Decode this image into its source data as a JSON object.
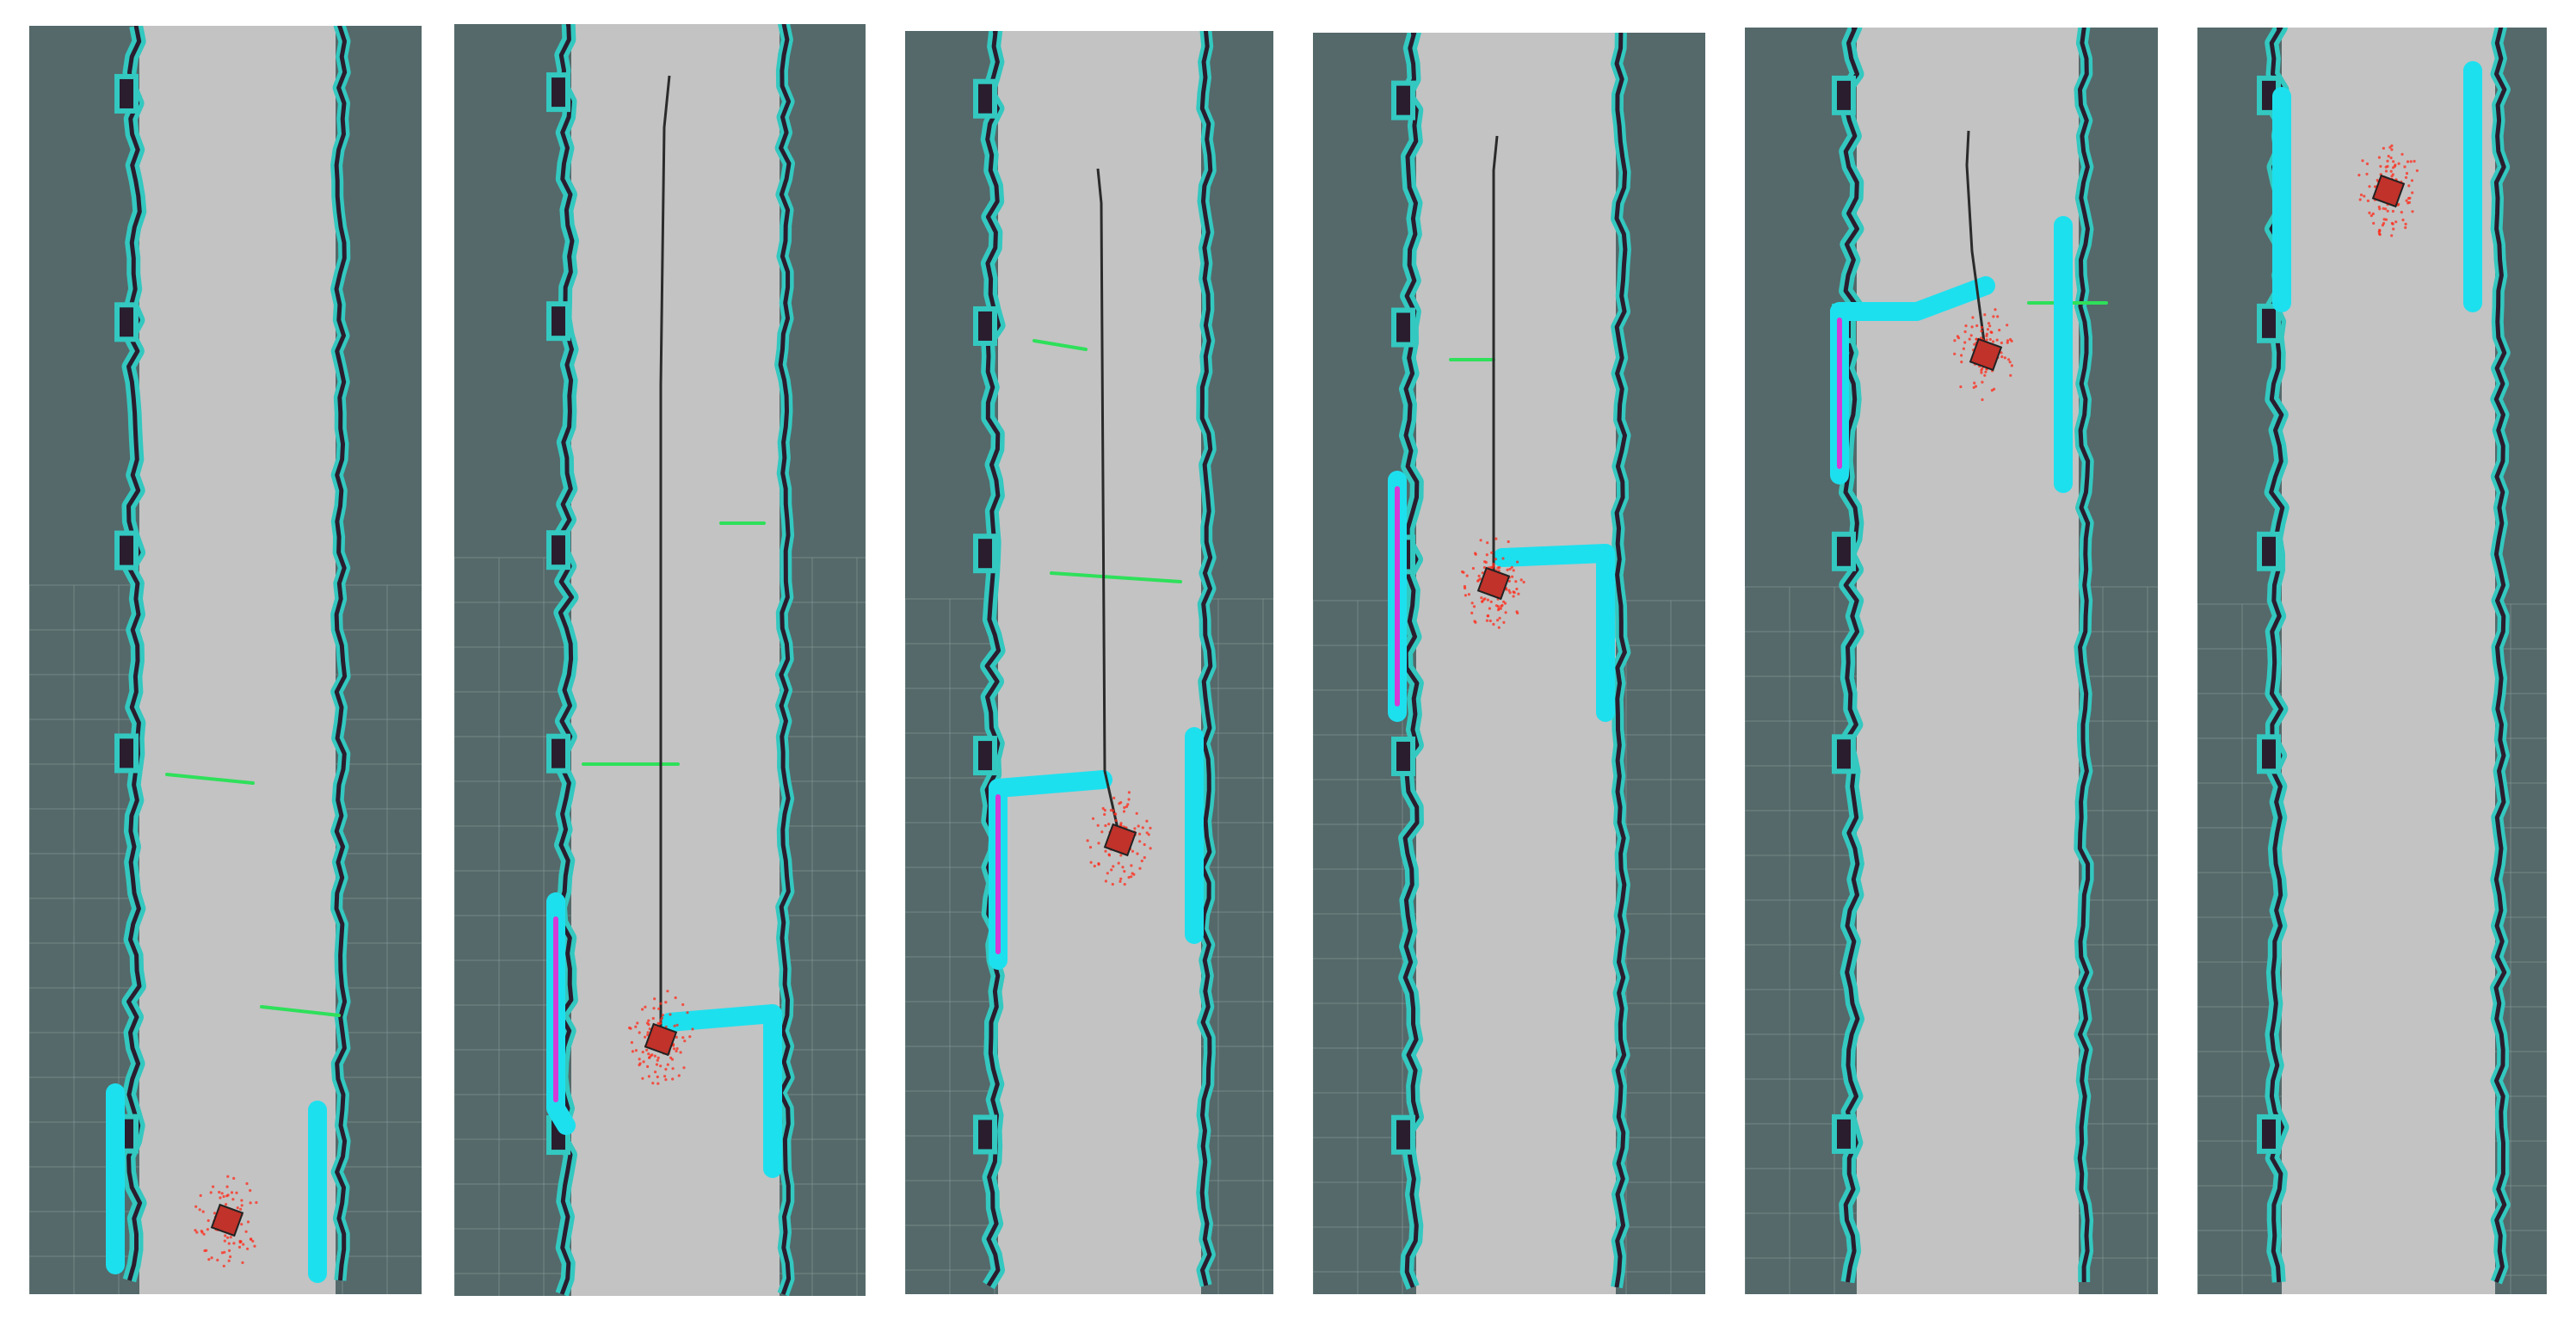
{
  "figure": {
    "panels": [
      {
        "id": "panel-1",
        "robot_visible": true,
        "path_visible": false,
        "obstacle": "bottom-gap"
      },
      {
        "id": "panel-2",
        "robot_visible": true,
        "path_visible": true,
        "obstacle": "lower-corridor"
      },
      {
        "id": "panel-3",
        "robot_visible": true,
        "path_visible": true,
        "obstacle": "mid-corridor"
      },
      {
        "id": "panel-4",
        "robot_visible": true,
        "path_visible": true,
        "obstacle": "upper-corridor"
      },
      {
        "id": "panel-5",
        "robot_visible": true,
        "path_visible": true,
        "obstacle": "top-corridor"
      },
      {
        "id": "panel-6",
        "robot_visible": true,
        "path_visible": false,
        "obstacle": "top-edge"
      }
    ],
    "colors": {
      "unknown": "#55696a",
      "free": "#c3c3c3",
      "wall": "#2a1d2e",
      "inflation": "#33c8c0",
      "obstacle_cyan": "#1de0ee",
      "obstacle_magenta": "#d53ad6",
      "laser_scan": "#2ee05a",
      "path": "#2b2b2b",
      "particles": "#ff2a1a",
      "robot": "#c0322a",
      "grid": "#8aa0a0"
    }
  }
}
